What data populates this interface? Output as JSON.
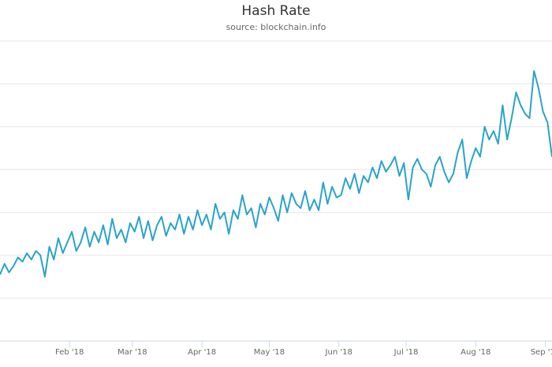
{
  "chart_data": {
    "type": "line",
    "title": "Hash Rate",
    "subtitle": "source: blockchain.info",
    "xlabel": "",
    "ylabel": "",
    "grid": true,
    "legend": "none",
    "line_color": "#2aa3c9",
    "x_ticks": [
      "Feb '18",
      "Mar '18",
      "Apr '18",
      "May '18",
      "Jun '18",
      "Jul '18",
      "Aug '18",
      "Sep '18"
    ],
    "x_tick_days": [
      31,
      59,
      90,
      120,
      151,
      181,
      212,
      243
    ],
    "x_range": [
      0,
      246
    ],
    "ylim": [
      0,
      7
    ],
    "gridlines_y": [
      1,
      2,
      3,
      4,
      5,
      6,
      7
    ],
    "series": [
      {
        "x": [
          0,
          2,
          4,
          6,
          8,
          10,
          12,
          14,
          16,
          18,
          20,
          22,
          24,
          26,
          28,
          30,
          32,
          34,
          36,
          38,
          40,
          42,
          44,
          46,
          48,
          50,
          52,
          54,
          56,
          58,
          60,
          62,
          64,
          66,
          68,
          70,
          72,
          74,
          76,
          78,
          80,
          82,
          84,
          86,
          88,
          90,
          92,
          94,
          96,
          98,
          100,
          102,
          104,
          106,
          108,
          110,
          112,
          114,
          116,
          118,
          120,
          122,
          124,
          126,
          128,
          130,
          132,
          134,
          136,
          138,
          140,
          142,
          144,
          146,
          148,
          150,
          152,
          154,
          156,
          158,
          160,
          162,
          164,
          166,
          168,
          170,
          172,
          174,
          176,
          178,
          180,
          182,
          184,
          186,
          188,
          190,
          192,
          194,
          196,
          198,
          200,
          202,
          204,
          206,
          208,
          210,
          212,
          214,
          216,
          218,
          220,
          222,
          224,
          226,
          228,
          230,
          232,
          234,
          236,
          238,
          240,
          242,
          244,
          246
        ],
        "y": [
          1.55,
          1.8,
          1.6,
          1.75,
          1.95,
          1.85,
          2.05,
          1.9,
          2.1,
          2.0,
          1.5,
          2.2,
          1.9,
          2.4,
          2.05,
          2.3,
          2.55,
          2.1,
          2.3,
          2.65,
          2.2,
          2.55,
          2.3,
          2.7,
          2.25,
          2.85,
          2.4,
          2.6,
          2.3,
          2.75,
          2.55,
          2.9,
          2.4,
          2.8,
          2.35,
          2.7,
          2.9,
          2.45,
          2.75,
          2.6,
          2.95,
          2.5,
          2.9,
          2.6,
          3.05,
          2.7,
          2.95,
          2.6,
          3.2,
          2.85,
          3.0,
          2.5,
          3.05,
          2.85,
          3.4,
          2.95,
          3.1,
          2.65,
          3.2,
          2.95,
          3.35,
          3.1,
          2.8,
          3.4,
          3.0,
          3.45,
          3.2,
          3.1,
          3.5,
          3.05,
          3.3,
          3.05,
          3.7,
          3.2,
          3.6,
          3.35,
          3.4,
          3.8,
          3.55,
          3.9,
          3.45,
          3.85,
          3.7,
          4.05,
          3.8,
          4.2,
          3.95,
          4.1,
          4.3,
          3.85,
          4.15,
          3.3,
          4.05,
          4.25,
          4.0,
          3.9,
          3.6,
          4.1,
          4.3,
          3.95,
          3.7,
          3.9,
          4.4,
          4.7,
          3.8,
          4.2,
          4.5,
          4.3,
          5.0,
          4.7,
          4.9,
          4.6,
          5.5,
          4.7,
          5.2,
          5.8,
          5.5,
          5.3,
          5.2,
          6.3,
          5.9,
          5.35,
          5.1,
          4.3
        ]
      }
    ]
  }
}
